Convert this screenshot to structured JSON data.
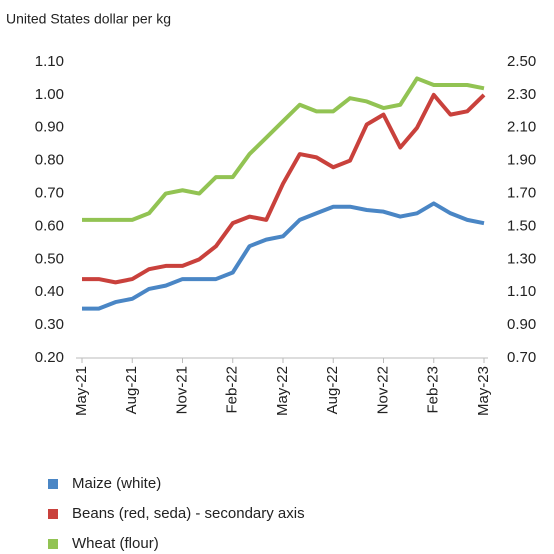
{
  "chart_data": {
    "type": "line",
    "title": "United States dollar per kg",
    "categories": [
      "May-21",
      null,
      null,
      "Aug-21",
      null,
      null,
      "Nov-21",
      null,
      null,
      "Feb-22",
      null,
      null,
      "May-22",
      null,
      null,
      "Aug-22",
      null,
      null,
      "Nov-22",
      null,
      null,
      "Feb-23",
      null,
      null,
      "May-23"
    ],
    "series": [
      {
        "name": "Maize (white)",
        "color": "#4a86c5",
        "values": [
          0.35,
          0.35,
          0.37,
          0.38,
          0.41,
          0.42,
          0.44,
          0.44,
          0.44,
          0.46,
          0.54,
          0.56,
          0.57,
          0.62,
          0.64,
          0.66,
          0.66,
          0.65,
          0.645,
          0.63,
          0.64,
          0.67,
          0.64,
          0.62,
          0.61
        ]
      },
      {
        "name": "Beans (red, seda) - secondary axis",
        "color": "#c9413c",
        "axis": "y2",
        "values": [
          1.18,
          1.18,
          1.16,
          1.18,
          1.24,
          1.26,
          1.26,
          1.3,
          1.38,
          1.52,
          1.56,
          1.54,
          1.76,
          1.94,
          1.92,
          1.86,
          1.9,
          2.12,
          2.18,
          1.98,
          2.1,
          2.3,
          2.18,
          2.2,
          2.3
        ]
      },
      {
        "name": "Wheat (flour)",
        "color": "#92c353",
        "values": [
          0.62,
          0.62,
          0.62,
          0.62,
          0.64,
          0.7,
          0.71,
          0.7,
          0.75,
          0.75,
          0.82,
          0.87,
          0.92,
          0.97,
          0.95,
          0.95,
          0.99,
          0.98,
          0.96,
          0.97,
          1.05,
          1.03,
          1.03,
          1.03,
          1.02
        ]
      }
    ],
    "ylim": [
      0.2,
      1.1
    ],
    "yticks": [
      {
        "value": 0.2,
        "label": "0.20"
      },
      {
        "value": 0.3,
        "label": "0.30"
      },
      {
        "value": 0.4,
        "label": "0.40"
      },
      {
        "value": 0.5,
        "label": "0.50"
      },
      {
        "value": 0.6,
        "label": "0.60"
      },
      {
        "value": 0.7,
        "label": "0.70"
      },
      {
        "value": 0.8,
        "label": "0.80"
      },
      {
        "value": 0.9,
        "label": "0.90"
      },
      {
        "value": 1.0,
        "label": "1.00"
      },
      {
        "value": 1.1,
        "label": "1.10"
      }
    ],
    "y2lim": [
      0.7,
      2.5
    ],
    "y2ticks": [
      {
        "value": 0.7,
        "label": "0.70"
      },
      {
        "value": 0.9,
        "label": "0.90"
      },
      {
        "value": 1.1,
        "label": "1.10"
      },
      {
        "value": 1.3,
        "label": "1.30"
      },
      {
        "value": 1.5,
        "label": "1.50"
      },
      {
        "value": 1.7,
        "label": "1.70"
      },
      {
        "value": 1.9,
        "label": "1.90"
      },
      {
        "value": 2.1,
        "label": "2.10"
      },
      {
        "value": 2.3,
        "label": "2.30"
      },
      {
        "value": 2.5,
        "label": "2.50"
      }
    ],
    "grid": false,
    "legend": "bottom"
  }
}
